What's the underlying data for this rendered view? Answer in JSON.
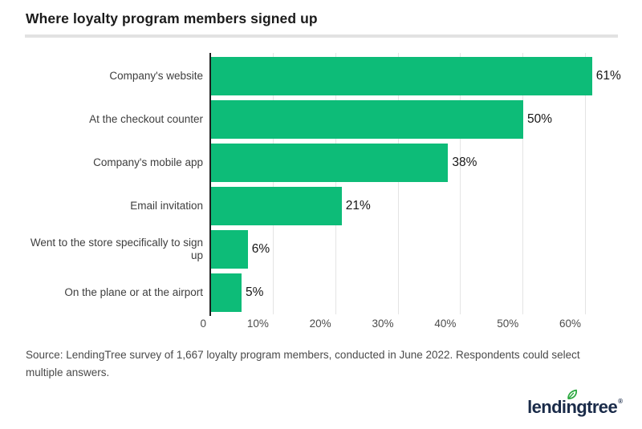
{
  "title": "Where loyalty program members signed up",
  "source_note": "Source: LendingTree survey of 1,667 loyalty program members, conducted in June 2022. Respondents could select multiple answers.",
  "logo": {
    "text": "lendingtree",
    "registered_mark": "®",
    "icon": "leaf-icon"
  },
  "colors": {
    "background": "#ffffff",
    "bar": "#0dbc78",
    "axis_line": "#1f1f1f",
    "gridline": "#e4e4e4",
    "divider": "#e2e2e2",
    "category_label": "#3e3e3e",
    "value_label": "#161616",
    "tick_label": "#4c4c4c",
    "source_text": "#4a4a4a",
    "logo_navy": "#1a2b49",
    "leaf_green": "#2aa73e"
  },
  "chart_data": {
    "type": "bar",
    "orientation": "horizontal",
    "title": "Where loyalty program members signed up",
    "categories": [
      "Company's website",
      "At the checkout counter",
      "Company's mobile app",
      "Email invitation",
      "Went to the store specifically to sign up",
      "On the plane or at the airport"
    ],
    "values": [
      61,
      50,
      38,
      21,
      6,
      5
    ],
    "value_labels": [
      "61%",
      "50%",
      "38%",
      "21%",
      "6%",
      "5%"
    ],
    "xlabel": "",
    "ylabel": "",
    "xlim": [
      0,
      65
    ],
    "x_ticks": [
      {
        "value": 0,
        "label": "0"
      },
      {
        "value": 10,
        "label": "10%"
      },
      {
        "value": 20,
        "label": "20%"
      },
      {
        "value": 30,
        "label": "30%"
      },
      {
        "value": 40,
        "label": "40%"
      },
      {
        "value": 50,
        "label": "50%"
      },
      {
        "value": 60,
        "label": "60%"
      }
    ],
    "grid": "vertical",
    "legend": "none"
  }
}
